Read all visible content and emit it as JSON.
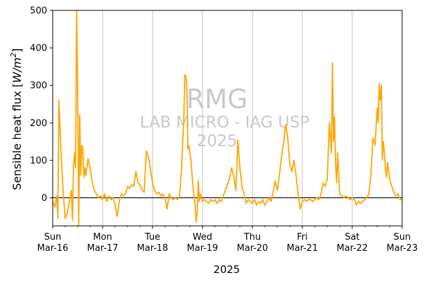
{
  "chart_data": {
    "type": "line",
    "title": "",
    "xlabel": "2025",
    "ylabel": "Sensible heat flux [W/m²]",
    "ylabel_parts": [
      "Sensible heat flux [",
      "W/m",
      "2",
      "]"
    ],
    "xlim": [
      "2025-03-16 00:00",
      "2025-03-23 00:00"
    ],
    "ylim": [
      -75,
      500
    ],
    "yticks": [
      0,
      100,
      200,
      300,
      400,
      500
    ],
    "xticks": [
      {
        "date": "2025-03-16",
        "day": "Sun",
        "label": "Mar-16"
      },
      {
        "date": "2025-03-17",
        "day": "Mon",
        "label": "Mar-17"
      },
      {
        "date": "2025-03-18",
        "day": "Tue",
        "label": "Mar-18"
      },
      {
        "date": "2025-03-19",
        "day": "Wed",
        "label": "Mar-19"
      },
      {
        "date": "2025-03-20",
        "day": "Thu",
        "label": "Mar-20"
      },
      {
        "date": "2025-03-21",
        "day": "Fri",
        "label": "Mar-21"
      },
      {
        "date": "2025-03-22",
        "day": "Sat",
        "label": "Mar-22"
      },
      {
        "date": "2025-03-23",
        "day": "Sun",
        "label": "Mar-23"
      }
    ],
    "grid": "vertical lines at daily ticks",
    "zero_line": true,
    "series": [
      {
        "color": "#FFA500",
        "points": [
          [
            "2025-03-16 00:00",
            -10
          ],
          [
            "2025-03-16 01:00",
            -25
          ],
          [
            "2025-03-16 02:00",
            5
          ],
          [
            "2025-03-16 02:30",
            -55
          ],
          [
            "2025-03-16 03:00",
            260
          ],
          [
            "2025-03-16 04:00",
            120
          ],
          [
            "2025-03-16 05:00",
            20
          ],
          [
            "2025-03-16 06:00",
            -55
          ],
          [
            "2025-03-16 07:00",
            -40
          ],
          [
            "2025-03-16 08:00",
            -10
          ],
          [
            "2025-03-16 09:00",
            20
          ],
          [
            "2025-03-16 09:30",
            -60
          ],
          [
            "2025-03-16 10:00",
            80
          ],
          [
            "2025-03-16 10:30",
            120
          ],
          [
            "2025-03-16 11:00",
            80
          ],
          [
            "2025-03-16 11:30",
            560
          ],
          [
            "2025-03-16 12:00",
            300
          ],
          [
            "2025-03-16 12:30",
            -80
          ],
          [
            "2025-03-16 13:00",
            220
          ],
          [
            "2025-03-16 13:30",
            60
          ],
          [
            "2025-03-16 14:00",
            140
          ],
          [
            "2025-03-16 14:30",
            130
          ],
          [
            "2025-03-16 15:00",
            55
          ],
          [
            "2025-03-16 15:30",
            80
          ],
          [
            "2025-03-16 16:00",
            60
          ],
          [
            "2025-03-16 17:00",
            105
          ],
          [
            "2025-03-16 18:00",
            80
          ],
          [
            "2025-03-16 19:00",
            40
          ],
          [
            "2025-03-16 20:00",
            20
          ],
          [
            "2025-03-16 21:00",
            10
          ],
          [
            "2025-03-16 22:00",
            0
          ],
          [
            "2025-03-16 23:00",
            5
          ],
          [
            "2025-03-17 00:00",
            -5
          ],
          [
            "2025-03-17 01:00",
            10
          ],
          [
            "2025-03-17 02:00",
            -10
          ],
          [
            "2025-03-17 03:00",
            5
          ],
          [
            "2025-03-17 04:00",
            -5
          ],
          [
            "2025-03-17 05:00",
            0
          ],
          [
            "2025-03-17 06:00",
            -20
          ],
          [
            "2025-03-17 07:00",
            -50
          ],
          [
            "2025-03-17 08:00",
            -10
          ],
          [
            "2025-03-17 09:00",
            10
          ],
          [
            "2025-03-17 10:00",
            5
          ],
          [
            "2025-03-17 11:00",
            10
          ],
          [
            "2025-03-17 12:00",
            30
          ],
          [
            "2025-03-17 13:00",
            25
          ],
          [
            "2025-03-17 14:00",
            35
          ],
          [
            "2025-03-17 15:00",
            30
          ],
          [
            "2025-03-17 16:00",
            70
          ],
          [
            "2025-03-17 17:00",
            40
          ],
          [
            "2025-03-17 18:00",
            35
          ],
          [
            "2025-03-17 19:00",
            20
          ],
          [
            "2025-03-17 20:00",
            15
          ],
          [
            "2025-03-17 21:00",
            125
          ],
          [
            "2025-03-17 22:00",
            110
          ],
          [
            "2025-03-17 23:00",
            75
          ],
          [
            "2025-03-18 00:00",
            40
          ],
          [
            "2025-03-18 01:00",
            20
          ],
          [
            "2025-03-18 02:00",
            10
          ],
          [
            "2025-03-18 03:00",
            15
          ],
          [
            "2025-03-18 04:00",
            5
          ],
          [
            "2025-03-18 05:00",
            10
          ],
          [
            "2025-03-18 06:00",
            0
          ],
          [
            "2025-03-18 07:00",
            -30
          ],
          [
            "2025-03-18 08:00",
            10
          ],
          [
            "2025-03-18 09:00",
            0
          ],
          [
            "2025-03-18 10:00",
            -5
          ],
          [
            "2025-03-18 11:00",
            0
          ],
          [
            "2025-03-18 12:00",
            -5
          ],
          [
            "2025-03-18 13:00",
            5
          ],
          [
            "2025-03-18 14:00",
            80
          ],
          [
            "2025-03-18 14:30",
            150
          ],
          [
            "2025-03-18 15:00",
            200
          ],
          [
            "2025-03-18 15:30",
            328
          ],
          [
            "2025-03-18 16:00",
            325
          ],
          [
            "2025-03-18 16:30",
            300
          ],
          [
            "2025-03-18 17:00",
            130
          ],
          [
            "2025-03-18 17:30",
            140
          ],
          [
            "2025-03-18 18:00",
            120
          ],
          [
            "2025-03-18 18:30",
            100
          ],
          [
            "2025-03-18 19:00",
            60
          ],
          [
            "2025-03-18 19:30",
            30
          ],
          [
            "2025-03-18 20:00",
            0
          ],
          [
            "2025-03-18 20:30",
            -20
          ],
          [
            "2025-03-18 21:00",
            -65
          ],
          [
            "2025-03-18 21:30",
            -40
          ],
          [
            "2025-03-18 22:00",
            45
          ],
          [
            "2025-03-18 22:30",
            -10
          ],
          [
            "2025-03-18 23:00",
            10
          ],
          [
            "2025-03-19 00:00",
            -10
          ],
          [
            "2025-03-19 01:00",
            -5
          ],
          [
            "2025-03-19 02:00",
            -10
          ],
          [
            "2025-03-19 03:00",
            -15
          ],
          [
            "2025-03-19 04:00",
            -5
          ],
          [
            "2025-03-19 05:00",
            -10
          ],
          [
            "2025-03-19 06:00",
            -5
          ],
          [
            "2025-03-19 07:00",
            -15
          ],
          [
            "2025-03-19 08:00",
            -5
          ],
          [
            "2025-03-19 09:00",
            -10
          ],
          [
            "2025-03-19 10:00",
            5
          ],
          [
            "2025-03-19 11:00",
            20
          ],
          [
            "2025-03-19 12:00",
            35
          ],
          [
            "2025-03-19 13:00",
            50
          ],
          [
            "2025-03-19 14:00",
            80
          ],
          [
            "2025-03-19 15:00",
            60
          ],
          [
            "2025-03-19 16:00",
            20
          ],
          [
            "2025-03-19 16:30",
            70
          ],
          [
            "2025-03-19 17:00",
            155
          ],
          [
            "2025-03-19 18:00",
            80
          ],
          [
            "2025-03-19 19:00",
            30
          ],
          [
            "2025-03-19 20:00",
            10
          ],
          [
            "2025-03-19 21:00",
            -15
          ],
          [
            "2025-03-19 22:00",
            -5
          ],
          [
            "2025-03-19 23:00",
            -10
          ],
          [
            "2025-03-20 00:00",
            -15
          ],
          [
            "2025-03-20 01:00",
            -5
          ],
          [
            "2025-03-20 02:00",
            -20
          ],
          [
            "2025-03-20 03:00",
            -10
          ],
          [
            "2025-03-20 04:00",
            -15
          ],
          [
            "2025-03-20 05:00",
            -5
          ],
          [
            "2025-03-20 06:00",
            -20
          ],
          [
            "2025-03-20 07:00",
            -10
          ],
          [
            "2025-03-20 08:00",
            0
          ],
          [
            "2025-03-20 09:00",
            -10
          ],
          [
            "2025-03-20 10:00",
            15
          ],
          [
            "2025-03-20 11:00",
            45
          ],
          [
            "2025-03-20 12:00",
            20
          ],
          [
            "2025-03-20 13:00",
            60
          ],
          [
            "2025-03-20 14:00",
            110
          ],
          [
            "2025-03-20 15:00",
            145
          ],
          [
            "2025-03-20 16:00",
            195
          ],
          [
            "2025-03-20 17:00",
            160
          ],
          [
            "2025-03-20 18:00",
            90
          ],
          [
            "2025-03-20 19:00",
            70
          ],
          [
            "2025-03-20 20:00",
            100
          ],
          [
            "2025-03-20 21:00",
            60
          ],
          [
            "2025-03-20 22:00",
            10
          ],
          [
            "2025-03-20 23:00",
            -30
          ],
          [
            "2025-03-21 00:00",
            -10
          ],
          [
            "2025-03-21 01:00",
            -5
          ],
          [
            "2025-03-21 02:00",
            -10
          ],
          [
            "2025-03-21 03:00",
            -5
          ],
          [
            "2025-03-21 04:00",
            -5
          ],
          [
            "2025-03-21 05:00",
            -10
          ],
          [
            "2025-03-21 06:00",
            -5
          ],
          [
            "2025-03-21 07:00",
            0
          ],
          [
            "2025-03-21 08:00",
            -5
          ],
          [
            "2025-03-21 09:00",
            10
          ],
          [
            "2025-03-21 10:00",
            40
          ],
          [
            "2025-03-21 11:00",
            30
          ],
          [
            "2025-03-21 12:00",
            50
          ],
          [
            "2025-03-21 13:00",
            200
          ],
          [
            "2025-03-21 14:00",
            120
          ],
          [
            "2025-03-21 14:30",
            360
          ],
          [
            "2025-03-21 15:00",
            150
          ],
          [
            "2025-03-21 15:30",
            215
          ],
          [
            "2025-03-21 16:00",
            90
          ],
          [
            "2025-03-21 16:30",
            40
          ],
          [
            "2025-03-21 17:00",
            120
          ],
          [
            "2025-03-21 18:00",
            10
          ],
          [
            "2025-03-21 19:00",
            5
          ],
          [
            "2025-03-21 20:00",
            0
          ],
          [
            "2025-03-21 21:00",
            5
          ],
          [
            "2025-03-21 22:00",
            0
          ],
          [
            "2025-03-21 23:00",
            -5
          ],
          [
            "2025-03-22 00:00",
            0
          ],
          [
            "2025-03-22 01:00",
            -5
          ],
          [
            "2025-03-22 02:00",
            -20
          ],
          [
            "2025-03-22 03:00",
            -10
          ],
          [
            "2025-03-22 04:00",
            -15
          ],
          [
            "2025-03-22 05:00",
            -10
          ],
          [
            "2025-03-22 06:00",
            -5
          ],
          [
            "2025-03-22 07:00",
            0
          ],
          [
            "2025-03-22 08:00",
            10
          ],
          [
            "2025-03-22 09:00",
            60
          ],
          [
            "2025-03-22 10:00",
            160
          ],
          [
            "2025-03-22 11:00",
            140
          ],
          [
            "2025-03-22 12:00",
            240
          ],
          [
            "2025-03-22 12:30",
            200
          ],
          [
            "2025-03-22 13:00",
            305
          ],
          [
            "2025-03-22 13:30",
            260
          ],
          [
            "2025-03-22 14:00",
            300
          ],
          [
            "2025-03-22 14:30",
            100
          ],
          [
            "2025-03-22 15:00",
            150
          ],
          [
            "2025-03-22 15:30",
            120
          ],
          [
            "2025-03-22 16:00",
            75
          ],
          [
            "2025-03-22 16:30",
            55
          ],
          [
            "2025-03-22 17:00",
            95
          ],
          [
            "2025-03-22 18:00",
            50
          ],
          [
            "2025-03-22 19:00",
            30
          ],
          [
            "2025-03-22 20:00",
            15
          ],
          [
            "2025-03-22 21:00",
            5
          ],
          [
            "2025-03-22 22:00",
            10
          ],
          [
            "2025-03-22 23:00",
            -5
          ],
          [
            "2025-03-23 00:00",
            -5
          ]
        ]
      }
    ],
    "watermark": [
      "RMG",
      "LAB MICRO - IAG USP",
      "2025"
    ]
  }
}
